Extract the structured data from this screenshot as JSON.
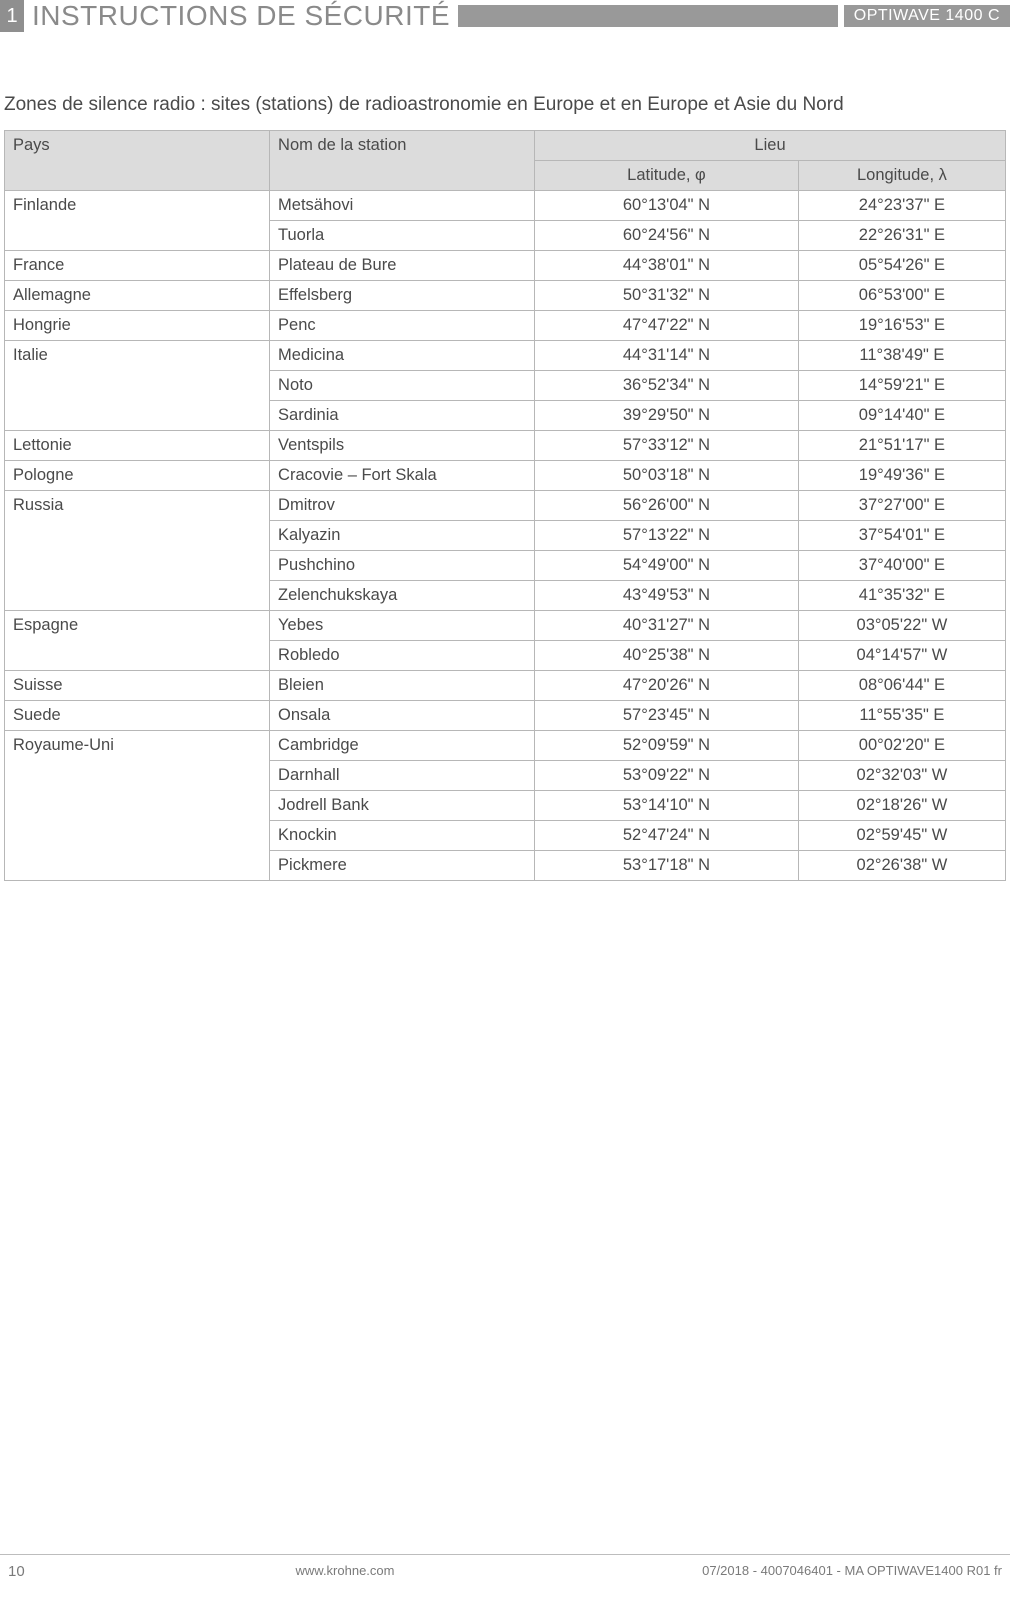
{
  "header": {
    "section_number": "1",
    "title": "INSTRUCTIONS DE SÉCURITÉ",
    "product": "OPTIWAVE 1400 C"
  },
  "intro": "Zones de silence radio : sites (stations) de radioastronomie en Europe et en Europe et Asie du Nord",
  "table": {
    "headers": {
      "country": "Pays",
      "station": "Nom de la station",
      "location": "Lieu",
      "lat": "Latitude, φ",
      "lon": "Longitude, λ"
    },
    "rows": [
      {
        "country": "Finlande",
        "station": "Metsähovi",
        "lat": "60°13'04\" N",
        "lon": "24°23'37\" E",
        "first": true,
        "span": 2
      },
      {
        "country": "",
        "station": "Tuorla",
        "lat": "60°24'56\" N",
        "lon": "22°26'31\" E"
      },
      {
        "country": "France",
        "station": "Plateau de Bure",
        "lat": "44°38'01\" N",
        "lon": "05°54'26\" E",
        "first": true,
        "span": 1
      },
      {
        "country": "Allemagne",
        "station": "Effelsberg",
        "lat": "50°31'32\" N",
        "lon": "06°53'00\" E",
        "first": true,
        "span": 1
      },
      {
        "country": "Hongrie",
        "station": "Penc",
        "lat": "47°47'22\" N",
        "lon": "19°16'53\" E",
        "first": true,
        "span": 1
      },
      {
        "country": "Italie",
        "station": "Medicina",
        "lat": "44°31'14\" N",
        "lon": "11°38'49\" E",
        "first": true,
        "span": 3
      },
      {
        "country": "",
        "station": "Noto",
        "lat": "36°52'34\" N",
        "lon": "14°59'21\" E"
      },
      {
        "country": "",
        "station": "Sardinia",
        "lat": "39°29'50\" N",
        "lon": "09°14'40\" E"
      },
      {
        "country": "Lettonie",
        "station": "Ventspils",
        "lat": "57°33'12\" N",
        "lon": "21°51'17\" E",
        "first": true,
        "span": 1
      },
      {
        "country": "Pologne",
        "station": "Cracovie – Fort Skala",
        "lat": "50°03'18\" N",
        "lon": "19°49'36\" E",
        "first": true,
        "span": 1
      },
      {
        "country": "Russia",
        "station": "Dmitrov",
        "lat": "56°26'00\" N",
        "lon": "37°27'00\" E",
        "first": true,
        "span": 4
      },
      {
        "country": "",
        "station": "Kalyazin",
        "lat": "57°13'22\" N",
        "lon": "37°54'01\" E"
      },
      {
        "country": "",
        "station": "Pushchino",
        "lat": "54°49'00\" N",
        "lon": "37°40'00\" E"
      },
      {
        "country": "",
        "station": "Zelenchukskaya",
        "lat": "43°49'53\" N",
        "lon": "41°35'32\" E"
      },
      {
        "country": "Espagne",
        "station": "Yebes",
        "lat": "40°31'27\" N",
        "lon": "03°05'22\" W",
        "first": true,
        "span": 2
      },
      {
        "country": "",
        "station": "Robledo",
        "lat": "40°25'38\" N",
        "lon": "04°14'57\" W"
      },
      {
        "country": "Suisse",
        "station": "Bleien",
        "lat": "47°20'26\" N",
        "lon": "08°06'44\" E",
        "first": true,
        "span": 1
      },
      {
        "country": "Suede",
        "station": "Onsala",
        "lat": "57°23'45\" N",
        "lon": "11°55'35\" E",
        "first": true,
        "span": 1
      },
      {
        "country": "Royaume-Uni",
        "station": "Cambridge",
        "lat": "52°09'59\" N",
        "lon": "00°02'20\" E",
        "first": true,
        "span": 5
      },
      {
        "country": "",
        "station": "Darnhall",
        "lat": "53°09'22\" N",
        "lon": "02°32'03\" W"
      },
      {
        "country": "",
        "station": "Jodrell Bank",
        "lat": "53°14'10\" N",
        "lon": "02°18'26\" W"
      },
      {
        "country": "",
        "station": "Knockin",
        "lat": "52°47'24\" N",
        "lon": "02°59'45\" W"
      },
      {
        "country": "",
        "station": "Pickmere",
        "lat": "53°17'18\" N",
        "lon": "02°26'38\" W"
      }
    ]
  },
  "footer": {
    "page_number": "10",
    "url": "www.krohne.com",
    "doc_ref": "07/2018 - 4007046401 - MA OPTIWAVE1400 R01 fr"
  }
}
